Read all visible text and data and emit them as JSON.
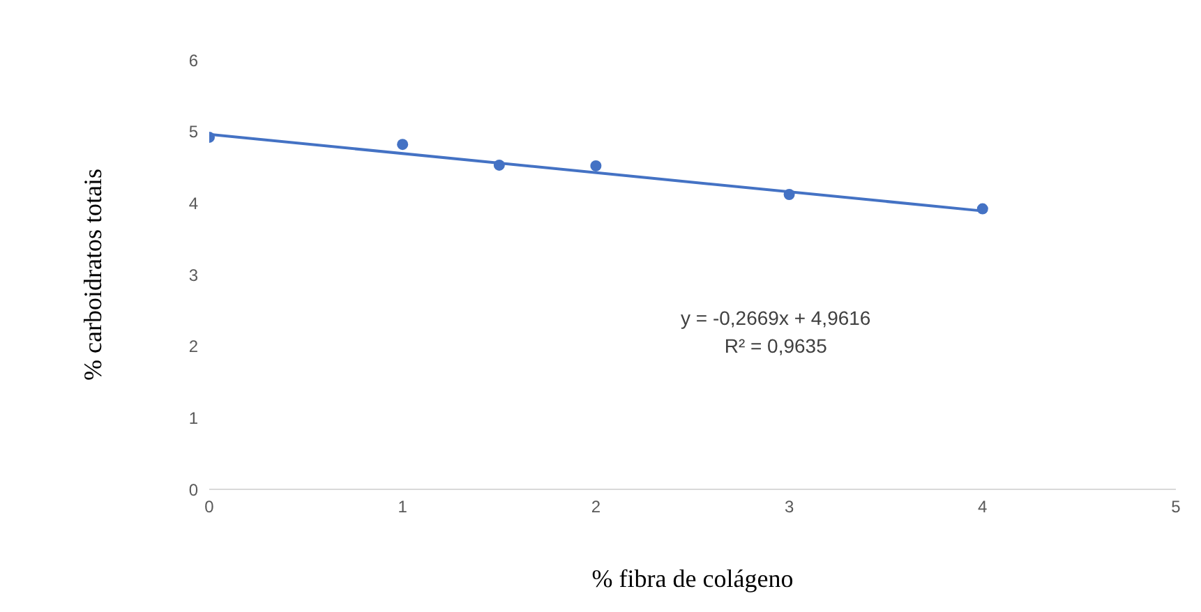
{
  "chart_data": {
    "type": "scatter",
    "xlabel": "% fibra de colágeno",
    "ylabel": "% carboidratos totais",
    "series": [
      {
        "color": "#4472c4",
        "x": [
          0,
          1,
          1.5,
          2,
          3,
          4
        ],
        "values": [
          4.92,
          4.82,
          4.53,
          4.52,
          4.12,
          3.92
        ],
        "marker": "circle"
      },
      {
        "type": "line",
        "color": "#4472c4",
        "x": [
          0,
          4
        ],
        "values": [
          4.96,
          3.89
        ],
        "marker": "none"
      }
    ],
    "xlim": [
      0,
      5
    ],
    "xticks": [
      0,
      1,
      2,
      3,
      4,
      5
    ],
    "ylim": [
      0,
      6
    ],
    "yticks": [
      0,
      1,
      2,
      3,
      4,
      5,
      6
    ],
    "grid": false,
    "annotations": [
      "y = -0,2669x + 4,9616",
      "R² = 0,9635"
    ]
  }
}
